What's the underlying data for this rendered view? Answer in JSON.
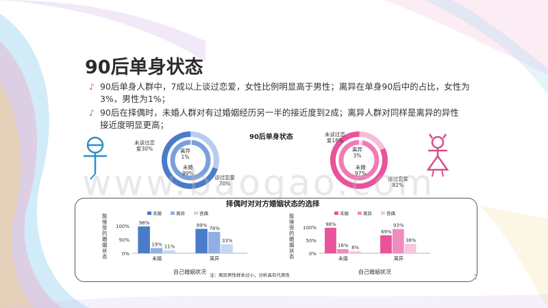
{
  "title": "90后单身状态",
  "bullets": [
    {
      "line1": "90后单身人群中，7成以上谈过恋爱，女性比例明显高于男性；离异在单身90后中的占比，女性为",
      "line2": "3%，男性为1%；"
    },
    {
      "line1": "90后在择偶时，未婚人群对有过婚姻经历另一半的接近度到2成；离异人群对同样是离异的异性",
      "line2": "接近度明显更高；"
    }
  ],
  "donut_section_title": "90后单身状态",
  "male_donut": {
    "label_outer_top": "未谈过恋",
    "label_outer_top2": "爱30%",
    "label_outer_bottom": "谈过恋爱",
    "label_outer_bottom2": "70%",
    "label_inner_top": "离异",
    "label_inner_top2": "1%",
    "label_inner_bottom": "未婚",
    "label_inner_bottom2": "99%",
    "colors": {
      "outer_main": "#4a7cc9",
      "outer_minor": "#b8cdee",
      "inner_main": "#7aa0dc",
      "inner_minor": "#dfe8f6"
    }
  },
  "female_donut": {
    "label_outer_top": "未谈过恋",
    "label_outer_top2": "爱18%",
    "label_outer_bottom": "谈过恋爱",
    "label_outer_bottom2": "82%",
    "label_inner_top": "离异",
    "label_inner_top2": "3%",
    "label_inner_bottom": "未婚",
    "label_inner_bottom2": "97%",
    "colors": {
      "outer_main": "#e9539a",
      "outer_minor": "#f7bcd9",
      "inner_main": "#f07cb5",
      "inner_minor": "#fbe0ee"
    }
  },
  "panel_title": "择偶时对对方婚姻状态的选择",
  "footnote": "注：离异男性样本过小，分析具有代表性",
  "page_number": "2",
  "watermark": "www.baogao.com",
  "chart_data": [
    {
      "type": "bar",
      "title": "",
      "ylabel": "能接受的婚姻状态",
      "xlabel": "自己婚姻状况",
      "categories": [
        "未婚",
        "离异"
      ],
      "series": [
        {
          "name": "未婚",
          "values": [
            98,
            89
          ],
          "color": "#4a7cc9"
        },
        {
          "name": "离异",
          "values": [
            19,
            78
          ],
          "color": "#8fb0e3"
        },
        {
          "name": "丧偶",
          "values": [
            11,
            33
          ],
          "color": "#c6d7f1"
        }
      ],
      "value_labels": [
        [
          "98%",
          "19%",
          "11%"
        ],
        [
          "89%",
          "78%",
          "33%"
        ]
      ],
      "yticks": [
        "100%",
        "50%",
        "0%"
      ],
      "ylim": [
        0,
        100
      ]
    },
    {
      "type": "bar",
      "title": "",
      "ylabel": "能接受的婚姻状态",
      "xlabel": "自己婚姻状况",
      "categories": [
        "未婚",
        "离异"
      ],
      "series": [
        {
          "name": "未婚",
          "values": [
            98,
            69
          ],
          "color": "#e9539a"
        },
        {
          "name": "离异",
          "values": [
            16,
            93
          ],
          "color": "#f08cbd"
        },
        {
          "name": "丧偶",
          "values": [
            8,
            36
          ],
          "color": "#f8c6df"
        }
      ],
      "value_labels": [
        [
          "98%",
          "16%",
          "8%"
        ],
        [
          "69%",
          "93%",
          "36%"
        ]
      ],
      "yticks": [
        "100%",
        "50%",
        "0%"
      ],
      "ylim": [
        0,
        100
      ]
    }
  ]
}
